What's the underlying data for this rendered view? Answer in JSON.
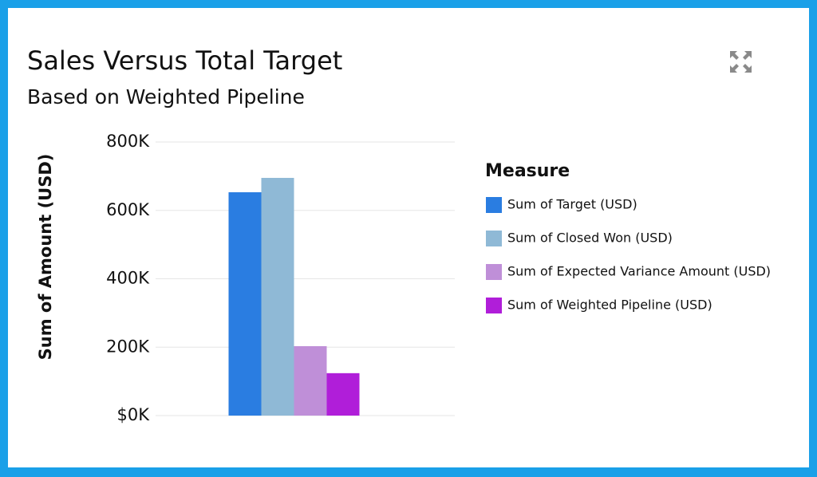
{
  "chart_data": {
    "type": "bar",
    "title": "Sales Versus Total Target",
    "subtitle": "Based on Weighted Pipeline",
    "y_label": "Sum of Amount (USD)",
    "legend_title": "Measure",
    "categories": [
      null
    ],
    "series": [
      {
        "name": "Sum of Target (USD)",
        "color": "#2a7de1",
        "values": [
          653000
        ]
      },
      {
        "name": "Sum of Closed Won (USD)",
        "color": "#8fb9d6",
        "values": [
          695000
        ]
      },
      {
        "name": "Sum of Expected Variance Amount (USD)",
        "color": "#bf8fd8",
        "values": [
          203000
        ]
      },
      {
        "name": "Sum of Weighted Pipeline (USD)",
        "color": "#b01ed9",
        "values": [
          124000
        ]
      }
    ],
    "ylim": [
      0,
      800000
    ],
    "yticks": [
      {
        "value": 0,
        "label": "$0K"
      },
      {
        "value": 200000,
        "label": "200K"
      },
      {
        "value": 400000,
        "label": "400K"
      },
      {
        "value": 600000,
        "label": "600K"
      },
      {
        "value": 800000,
        "label": "800K"
      }
    ],
    "grid": true,
    "legend": "right"
  }
}
